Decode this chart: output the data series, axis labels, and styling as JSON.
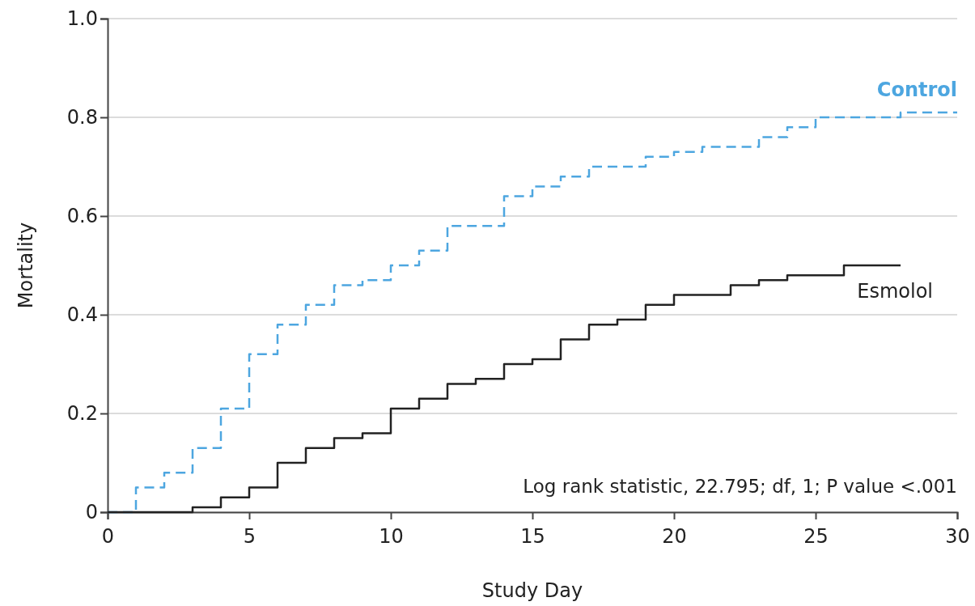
{
  "chart_data": {
    "type": "step",
    "xlabel": "Study Day",
    "ylabel": "Mortality",
    "xlim": [
      0,
      30
    ],
    "ylim": [
      0,
      1
    ],
    "xticks": [
      0,
      5,
      10,
      15,
      20,
      25,
      30
    ],
    "yticks": [
      0,
      0.2,
      0.4,
      0.6,
      0.8,
      {
        "value": 1,
        "label": "1.0"
      }
    ],
    "grid": "y",
    "series": [
      {
        "name": "Control",
        "color": "#4da6e0",
        "line_style": "dashed",
        "x": [
          0,
          1,
          2,
          3,
          4,
          5,
          6,
          7,
          8,
          9,
          10,
          11,
          12,
          14,
          15,
          16,
          17,
          19,
          20,
          21,
          23,
          24,
          25,
          28,
          30
        ],
        "values": [
          0,
          0.05,
          0.08,
          0.13,
          0.21,
          0.32,
          0.38,
          0.42,
          0.46,
          0.47,
          0.5,
          0.53,
          0.58,
          0.64,
          0.66,
          0.68,
          0.7,
          0.72,
          0.73,
          0.74,
          0.76,
          0.78,
          0.8,
          0.81,
          0.81
        ]
      },
      {
        "name": "Esmolol",
        "color": "#222222",
        "line_style": "solid",
        "x": [
          0,
          3,
          4,
          5,
          6,
          7,
          8,
          9,
          10,
          11,
          12,
          13,
          14,
          15,
          16,
          17,
          18,
          19,
          20,
          22,
          23,
          24,
          26,
          28
        ],
        "values": [
          0,
          0.01,
          0.03,
          0.05,
          0.1,
          0.13,
          0.15,
          0.16,
          0.21,
          0.23,
          0.26,
          0.27,
          0.3,
          0.31,
          0.35,
          0.38,
          0.39,
          0.42,
          0.44,
          0.46,
          0.47,
          0.48,
          0.5,
          0.5
        ]
      }
    ],
    "annotations": [
      "Log rank statistic, 22.795; df, 1; P value <.001"
    ]
  }
}
